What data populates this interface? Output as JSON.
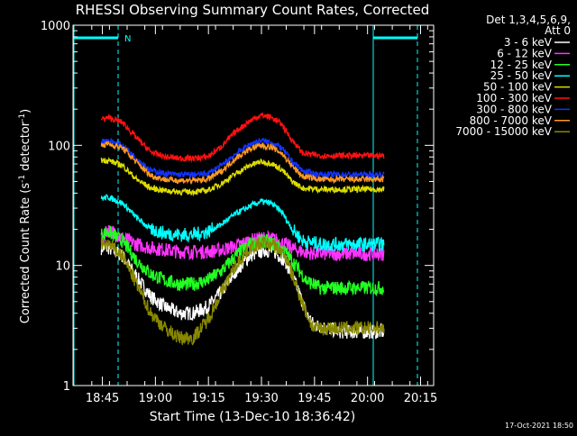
{
  "chart_data": {
    "type": "line",
    "title": "RHESSI Observing Summary Count Rates, Corrected",
    "xlabel": "Start Time (13-Dec-10 18:36:42)",
    "ylabel": "Corrected Count Rate (s⁻¹ detector⁻¹)",
    "ylabel_parts": [
      "Corrected Count Rate (s",
      "-1",
      " detector",
      "-1",
      ")"
    ],
    "yscale": "log",
    "ylim": [
      1,
      1000
    ],
    "xlim_minutes": [
      0,
      102
    ],
    "y_ticks": [
      {
        "value": 1,
        "label": "1"
      },
      {
        "value": 10,
        "label": "10"
      },
      {
        "value": 100,
        "label": "100"
      },
      {
        "value": 1000,
        "label": "1000"
      }
    ],
    "x_ticks": [
      {
        "minute": 8.3,
        "label": "18:45"
      },
      {
        "minute": 23.3,
        "label": "19:00"
      },
      {
        "minute": 38.3,
        "label": "19:15"
      },
      {
        "minute": 53.3,
        "label": "19:30"
      },
      {
        "minute": 68.3,
        "label": "19:45"
      },
      {
        "minute": 83.3,
        "label": "20:00"
      },
      {
        "minute": 98.3,
        "label": "20:15"
      }
    ],
    "legend_header": [
      "Det 1,3,4,5,6,9,",
      "Att 0"
    ],
    "legend_placement": "right",
    "timestamp": "17-Oct-2021 18:50",
    "data_start_minute": 8.0,
    "data_end_minute": 88.0,
    "series": [
      {
        "name": "3 - 6 keV",
        "color": "#ffffff",
        "points": [
          [
            8,
            14
          ],
          [
            10,
            14
          ],
          [
            14,
            12
          ],
          [
            18,
            8
          ],
          [
            22,
            5.5
          ],
          [
            26,
            4.5
          ],
          [
            30,
            4
          ],
          [
            34,
            4
          ],
          [
            38,
            4.5
          ],
          [
            42,
            6
          ],
          [
            46,
            9
          ],
          [
            50,
            12
          ],
          [
            54,
            13.5
          ],
          [
            57,
            13
          ],
          [
            60,
            11
          ],
          [
            63,
            7
          ],
          [
            66,
            4
          ],
          [
            68,
            3.2
          ],
          [
            72,
            3
          ],
          [
            76,
            2.8
          ],
          [
            80,
            2.8
          ],
          [
            84,
            2.8
          ],
          [
            88,
            2.8
          ]
        ]
      },
      {
        "name": "6 - 12 keV",
        "color": "#ff33ff",
        "points": [
          [
            8,
            16
          ],
          [
            10,
            20
          ],
          [
            14,
            17
          ],
          [
            18,
            15
          ],
          [
            22,
            14
          ],
          [
            26,
            13.5
          ],
          [
            30,
            13
          ],
          [
            34,
            13
          ],
          [
            38,
            13
          ],
          [
            42,
            13.5
          ],
          [
            46,
            14.5
          ],
          [
            50,
            16
          ],
          [
            54,
            17
          ],
          [
            57,
            16.5
          ],
          [
            60,
            15
          ],
          [
            63,
            13.5
          ],
          [
            66,
            12.8
          ],
          [
            70,
            12.5
          ],
          [
            76,
            12.5
          ],
          [
            82,
            12.5
          ],
          [
            88,
            12.5
          ]
        ]
      },
      {
        "name": "12 - 25 keV",
        "color": "#22ff22",
        "points": [
          [
            8,
            18
          ],
          [
            10,
            19
          ],
          [
            14,
            16
          ],
          [
            18,
            11
          ],
          [
            22,
            8.5
          ],
          [
            26,
            7.5
          ],
          [
            30,
            7
          ],
          [
            34,
            7
          ],
          [
            38,
            7.5
          ],
          [
            42,
            9
          ],
          [
            46,
            12
          ],
          [
            50,
            15
          ],
          [
            54,
            16
          ],
          [
            57,
            15
          ],
          [
            60,
            13
          ],
          [
            63,
            10
          ],
          [
            66,
            7.5
          ],
          [
            70,
            6.5
          ],
          [
            76,
            6.5
          ],
          [
            82,
            6.5
          ],
          [
            88,
            6.5
          ]
        ]
      },
      {
        "name": "25 - 50 keV",
        "color": "#00ffff",
        "points": [
          [
            8,
            36
          ],
          [
            10,
            37
          ],
          [
            14,
            33
          ],
          [
            18,
            25
          ],
          [
            22,
            20
          ],
          [
            26,
            18.5
          ],
          [
            30,
            18
          ],
          [
            34,
            18
          ],
          [
            38,
            19
          ],
          [
            42,
            22
          ],
          [
            46,
            27
          ],
          [
            50,
            31
          ],
          [
            53,
            34
          ],
          [
            56,
            33
          ],
          [
            59,
            28
          ],
          [
            62,
            20
          ],
          [
            65,
            16
          ],
          [
            70,
            15
          ],
          [
            76,
            15
          ],
          [
            82,
            15
          ],
          [
            88,
            15
          ]
        ]
      },
      {
        "name": "50 - 100 keV",
        "color": "#dddd00",
        "points": [
          [
            8,
            75
          ],
          [
            10,
            75
          ],
          [
            14,
            68
          ],
          [
            18,
            52
          ],
          [
            22,
            44
          ],
          [
            26,
            42
          ],
          [
            30,
            41
          ],
          [
            34,
            41
          ],
          [
            38,
            42
          ],
          [
            42,
            48
          ],
          [
            46,
            58
          ],
          [
            50,
            68
          ],
          [
            53,
            73
          ],
          [
            56,
            71
          ],
          [
            59,
            63
          ],
          [
            62,
            50
          ],
          [
            65,
            44
          ],
          [
            70,
            43
          ],
          [
            76,
            43
          ],
          [
            82,
            43
          ],
          [
            88,
            43
          ]
        ]
      },
      {
        "name": "100 - 300 keV",
        "color": "#ff1111",
        "points": [
          [
            8,
            165
          ],
          [
            10,
            170
          ],
          [
            14,
            155
          ],
          [
            18,
            115
          ],
          [
            22,
            88
          ],
          [
            26,
            80
          ],
          [
            30,
            78
          ],
          [
            34,
            78
          ],
          [
            38,
            80
          ],
          [
            42,
            98
          ],
          [
            46,
            130
          ],
          [
            50,
            160
          ],
          [
            53,
            178
          ],
          [
            56,
            172
          ],
          [
            59,
            150
          ],
          [
            62,
            110
          ],
          [
            65,
            86
          ],
          [
            70,
            82
          ],
          [
            76,
            82
          ],
          [
            82,
            82
          ],
          [
            88,
            82
          ]
        ]
      },
      {
        "name": "300 - 800 keV",
        "color": "#1133ff",
        "points": [
          [
            8,
            108
          ],
          [
            10,
            110
          ],
          [
            14,
            100
          ],
          [
            18,
            78
          ],
          [
            22,
            62
          ],
          [
            26,
            58
          ],
          [
            30,
            57
          ],
          [
            34,
            57
          ],
          [
            38,
            58
          ],
          [
            42,
            68
          ],
          [
            46,
            85
          ],
          [
            50,
            102
          ],
          [
            53,
            110
          ],
          [
            56,
            106
          ],
          [
            59,
            95
          ],
          [
            62,
            74
          ],
          [
            65,
            61
          ],
          [
            70,
            57
          ],
          [
            76,
            57
          ],
          [
            82,
            57
          ],
          [
            88,
            57
          ]
        ]
      },
      {
        "name": "800 - 7000 keV",
        "color": "#ff9922",
        "points": [
          [
            8,
            100
          ],
          [
            10,
            103
          ],
          [
            14,
            95
          ],
          [
            18,
            72
          ],
          [
            22,
            56
          ],
          [
            26,
            52
          ],
          [
            30,
            51
          ],
          [
            34,
            51
          ],
          [
            38,
            52
          ],
          [
            42,
            61
          ],
          [
            46,
            78
          ],
          [
            50,
            93
          ],
          [
            53,
            100
          ],
          [
            56,
            97
          ],
          [
            59,
            86
          ],
          [
            62,
            67
          ],
          [
            65,
            55
          ],
          [
            70,
            52
          ],
          [
            76,
            52
          ],
          [
            82,
            52
          ],
          [
            88,
            52
          ]
        ]
      },
      {
        "name": "7000 - 15000 keV",
        "color": "#888800",
        "points": [
          [
            8,
            15
          ],
          [
            10,
            15
          ],
          [
            14,
            12
          ],
          [
            18,
            7
          ],
          [
            22,
            4
          ],
          [
            26,
            3
          ],
          [
            30,
            2.5
          ],
          [
            34,
            2.5
          ],
          [
            38,
            3.5
          ],
          [
            42,
            6
          ],
          [
            46,
            10
          ],
          [
            50,
            14
          ],
          [
            54,
            15.5
          ],
          [
            57,
            14.5
          ],
          [
            60,
            12
          ],
          [
            63,
            7
          ],
          [
            66,
            4
          ],
          [
            68,
            3
          ],
          [
            72,
            3
          ],
          [
            76,
            3
          ],
          [
            80,
            3
          ],
          [
            84,
            3
          ],
          [
            88,
            3
          ]
        ]
      }
    ],
    "annotations": [
      {
        "type": "flag",
        "label": "N"
      }
    ]
  }
}
